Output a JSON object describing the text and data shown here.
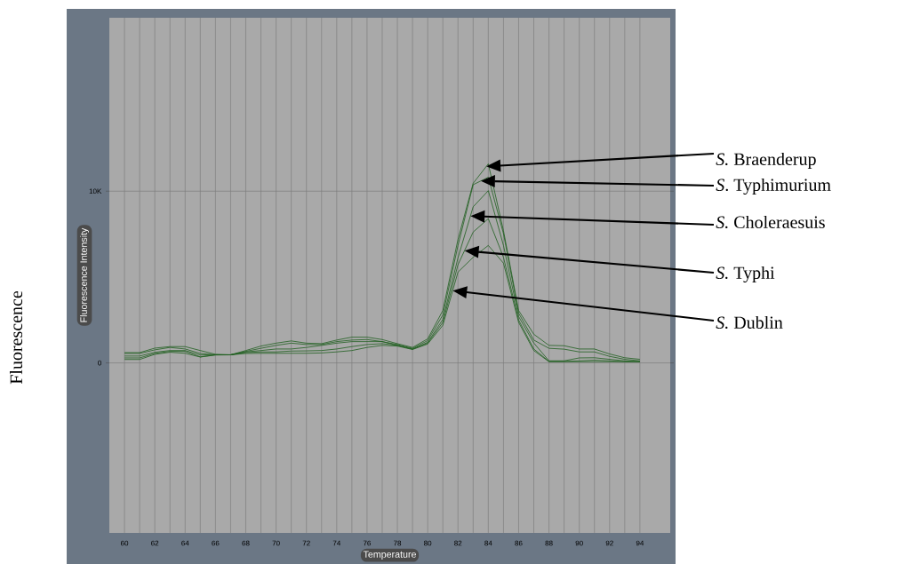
{
  "chart_data": {
    "type": "line",
    "xlabel": "Temperature",
    "ylabel": "Fluorescence Intensity",
    "annotations": [
      "Fluorescence"
    ],
    "x": [
      60,
      61,
      62,
      63,
      64,
      65,
      66,
      67,
      68,
      69,
      70,
      71,
      72,
      73,
      74,
      75,
      76,
      77,
      78,
      79,
      80,
      81,
      82,
      83,
      84,
      85,
      86,
      87,
      88,
      89,
      90,
      91,
      92,
      93,
      94
    ],
    "series": [
      {
        "name": "*S.* Braenderup",
        "color": "#1f5f1f",
        "values": [
          600,
          600,
          860,
          950,
          950,
          720,
          500,
          470,
          720,
          980,
          1150,
          1280,
          1150,
          1120,
          1330,
          1500,
          1500,
          1360,
          1120,
          900,
          1400,
          3050,
          7190,
          10460,
          11590,
          7700,
          3050,
          1670,
          1020,
          1000,
          810,
          810,
          520,
          300,
          210
        ]
      },
      {
        "name": "*S*. Typhimurium",
        "color": "#1f5f1f",
        "values": [
          550,
          550,
          760,
          900,
          810,
          550,
          470,
          470,
          670,
          850,
          1020,
          1150,
          1070,
          1070,
          1240,
          1330,
          1360,
          1240,
          1070,
          850,
          1300,
          2790,
          6840,
          10380,
          10810,
          7530,
          2900,
          1330,
          850,
          800,
          640,
          640,
          380,
          210,
          120
        ]
      },
      {
        "name": "*S.* Choleraesuis",
        "color": "#1f5f1f",
        "values": [
          400,
          400,
          620,
          720,
          720,
          460,
          470,
          470,
          640,
          720,
          810,
          810,
          900,
          1020,
          1150,
          1240,
          1240,
          1240,
          1020,
          810,
          1200,
          2530,
          6120,
          9090,
          10030,
          6840,
          2700,
          1160,
          120,
          120,
          290,
          300,
          210,
          120,
          70
        ]
      },
      {
        "name": "*S.* Typhi",
        "color": "#1f5f1f",
        "values": [
          290,
          290,
          550,
          670,
          670,
          350,
          470,
          470,
          600,
          640,
          640,
          690,
          700,
          720,
          810,
          950,
          1070,
          1120,
          1020,
          800,
          1150,
          2360,
          5720,
          7620,
          8400,
          6150,
          2500,
          810,
          90,
          90,
          120,
          160,
          120,
          70,
          70
        ]
      },
      {
        "name": "*S.* Dublin",
        "color": "#1f5f1f",
        "values": [
          200,
          200,
          500,
          620,
          560,
          340,
          460,
          470,
          550,
          560,
          560,
          560,
          560,
          580,
          640,
          720,
          900,
          1020,
          980,
          780,
          1100,
          2190,
          5290,
          6150,
          6840,
          5810,
          2360,
          720,
          70,
          70,
          70,
          70,
          70,
          70,
          70
        ]
      }
    ],
    "xlim": [
      59,
      96
    ],
    "ylim": [
      -9900,
      20100
    ],
    "xticks": [
      60,
      62,
      64,
      66,
      68,
      70,
      72,
      74,
      76,
      78,
      80,
      82,
      84,
      86,
      88,
      90,
      92,
      94
    ],
    "yticks": [
      0,
      {
        "value": 10000,
        "label": "10K"
      }
    ],
    "grid": true
  }
}
